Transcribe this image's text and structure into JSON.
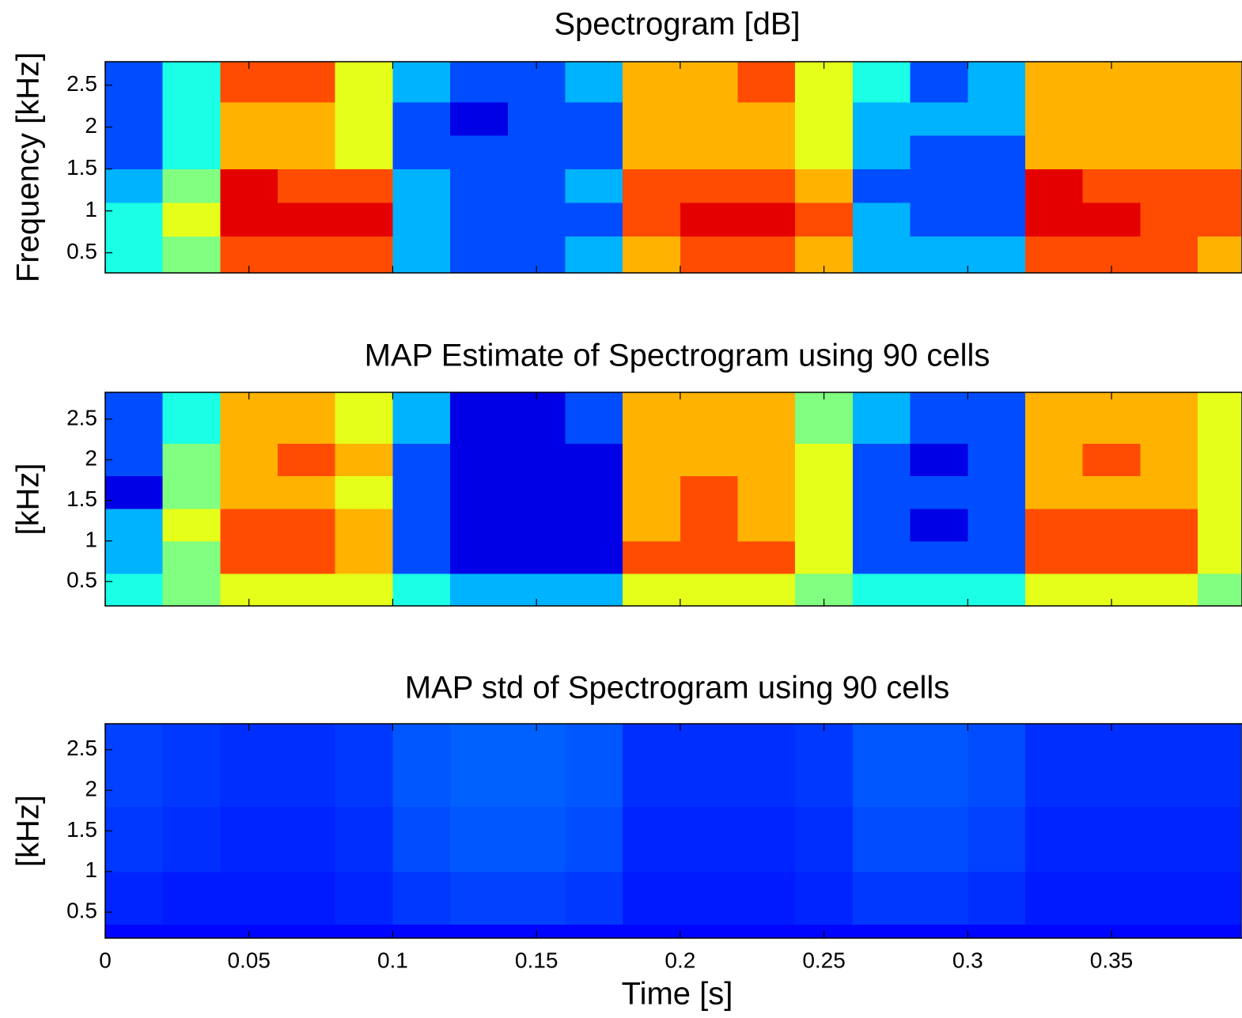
{
  "chart_data": [
    {
      "type": "heatmap",
      "title": "Spectrogram [dB]",
      "ylabel": "Frequency [kHz]",
      "colormap": "jet",
      "clim": [
        0,
        10
      ],
      "xlim": [
        0,
        0.3954
      ],
      "ylim": [
        0.26,
        2.78
      ],
      "xticks": [
        0,
        0.05,
        0.1,
        0.15,
        0.2,
        0.25,
        0.3,
        0.35
      ],
      "show_xtick_labels": false,
      "yticks": [
        0.5,
        1,
        1.5,
        2,
        2.5
      ],
      "x_bins": [
        0,
        0.02,
        0.04,
        0.06,
        0.08,
        0.1,
        0.12,
        0.14,
        0.16,
        0.18,
        0.2,
        0.22,
        0.24,
        0.26,
        0.28,
        0.3,
        0.32,
        0.34,
        0.36,
        0.38,
        0.395
      ],
      "y_bins": [
        0.26,
        0.7,
        1.1,
        1.5,
        1.9,
        2.3,
        2.78
      ],
      "values": [
        [
          4,
          5,
          8,
          8,
          8,
          3,
          2,
          2,
          3,
          7,
          8,
          8,
          7,
          3,
          3,
          3,
          8,
          8,
          8,
          7
        ],
        [
          4,
          6,
          9,
          9,
          9,
          3,
          2,
          2,
          2,
          8,
          9,
          9,
          8,
          3,
          2,
          2,
          9,
          9,
          8,
          8
        ],
        [
          3,
          5,
          9,
          8,
          8,
          3,
          2,
          2,
          3,
          8,
          8,
          8,
          7,
          2,
          2,
          2,
          9,
          8,
          8,
          8
        ],
        [
          2,
          4,
          7,
          7,
          6,
          2,
          2,
          2,
          2,
          7,
          7,
          7,
          6,
          3,
          2,
          2,
          7,
          7,
          7,
          7
        ],
        [
          2,
          4,
          7,
          7,
          6,
          2,
          1,
          2,
          2,
          7,
          7,
          7,
          6,
          3,
          3,
          3,
          7,
          7,
          7,
          7
        ],
        [
          2,
          4,
          8,
          8,
          6,
          3,
          2,
          2,
          3,
          7,
          7,
          8,
          6,
          4,
          2,
          3,
          7,
          7,
          7,
          7
        ]
      ]
    },
    {
      "type": "heatmap",
      "title": "MAP Estimate of Spectrogram using 90 cells",
      "ylabel": "[kHz]",
      "colormap": "jet",
      "clim": [
        0,
        10
      ],
      "xlim": [
        0,
        0.3954
      ],
      "ylim": [
        0.2,
        2.83
      ],
      "xticks": [
        0,
        0.05,
        0.1,
        0.15,
        0.2,
        0.25,
        0.3,
        0.35
      ],
      "show_xtick_labels": false,
      "yticks": [
        0.5,
        1,
        1.5,
        2,
        2.5
      ],
      "x_bins": [
        0,
        0.02,
        0.04,
        0.06,
        0.08,
        0.1,
        0.12,
        0.14,
        0.16,
        0.18,
        0.2,
        0.22,
        0.24,
        0.26,
        0.28,
        0.3,
        0.32,
        0.34,
        0.36,
        0.38,
        0.395
      ],
      "y_bins": [
        0.2,
        0.6,
        1,
        1.4,
        1.8,
        2.2,
        2.83
      ],
      "values": [
        [
          4,
          5,
          6,
          6,
          6,
          4,
          3,
          3,
          3,
          6,
          6,
          6,
          5,
          4,
          4,
          4,
          6,
          6,
          6,
          5
        ],
        [
          3,
          5,
          8,
          8,
          7,
          2,
          1,
          1,
          1,
          8,
          8,
          8,
          6,
          2,
          2,
          2,
          8,
          8,
          8,
          6
        ],
        [
          3,
          6,
          8,
          8,
          7,
          2,
          1,
          1,
          1,
          7,
          8,
          7,
          6,
          2,
          1,
          2,
          8,
          8,
          8,
          6
        ],
        [
          1,
          5,
          7,
          7,
          6,
          2,
          1,
          1,
          1,
          7,
          8,
          7,
          6,
          2,
          2,
          2,
          7,
          7,
          7,
          6
        ],
        [
          2,
          5,
          7,
          8,
          7,
          2,
          1,
          1,
          1,
          7,
          7,
          7,
          6,
          2,
          1,
          2,
          7,
          8,
          7,
          6
        ],
        [
          2,
          4,
          7,
          7,
          6,
          3,
          1,
          1,
          2,
          7,
          7,
          7,
          5,
          3,
          2,
          2,
          7,
          7,
          7,
          6
        ]
      ]
    },
    {
      "type": "heatmap",
      "title": "MAP std of Spectrogram using 90 cells",
      "ylabel": "[kHz]",
      "xlabel": "Time [s]",
      "colormap": "jet",
      "clim": [
        0,
        10
      ],
      "xlim": [
        0,
        0.3954
      ],
      "ylim": [
        0.18,
        2.82
      ],
      "xticks": [
        0,
        0.05,
        0.1,
        0.15,
        0.2,
        0.25,
        0.3,
        0.35
      ],
      "show_xtick_labels": true,
      "yticks": [
        0.5,
        1,
        1.5,
        2,
        2.5
      ],
      "x_bins": [
        0,
        0.02,
        0.04,
        0.06,
        0.08,
        0.1,
        0.12,
        0.14,
        0.16,
        0.18,
        0.2,
        0.22,
        0.24,
        0.26,
        0.28,
        0.3,
        0.32,
        0.34,
        0.36,
        0.38,
        0.395
      ],
      "y_bins": [
        0.18,
        0.35,
        1,
        1.8,
        2.82
      ],
      "values": [
        [
          1.3,
          1.3,
          1.3,
          1.3,
          1.3,
          1.3,
          1.3,
          1.3,
          1.3,
          1.3,
          1.3,
          1.3,
          1.3,
          1.3,
          1.3,
          1.3,
          1.3,
          1.3,
          1.3,
          1.3
        ],
        [
          1.6,
          1.5,
          1.5,
          1.5,
          1.6,
          1.8,
          1.9,
          1.9,
          1.8,
          1.5,
          1.5,
          1.5,
          1.6,
          1.8,
          1.8,
          1.7,
          1.5,
          1.5,
          1.5,
          1.5
        ],
        [
          1.8,
          1.7,
          1.6,
          1.6,
          1.7,
          2,
          2.1,
          2.1,
          2,
          1.6,
          1.6,
          1.6,
          1.7,
          2,
          2,
          1.9,
          1.6,
          1.6,
          1.6,
          1.6
        ],
        [
          1.9,
          1.8,
          1.7,
          1.7,
          1.8,
          2.1,
          2.2,
          2.2,
          2.1,
          1.7,
          1.7,
          1.7,
          1.8,
          2.1,
          2.1,
          2,
          1.7,
          1.7,
          1.7,
          1.7
        ]
      ]
    }
  ]
}
